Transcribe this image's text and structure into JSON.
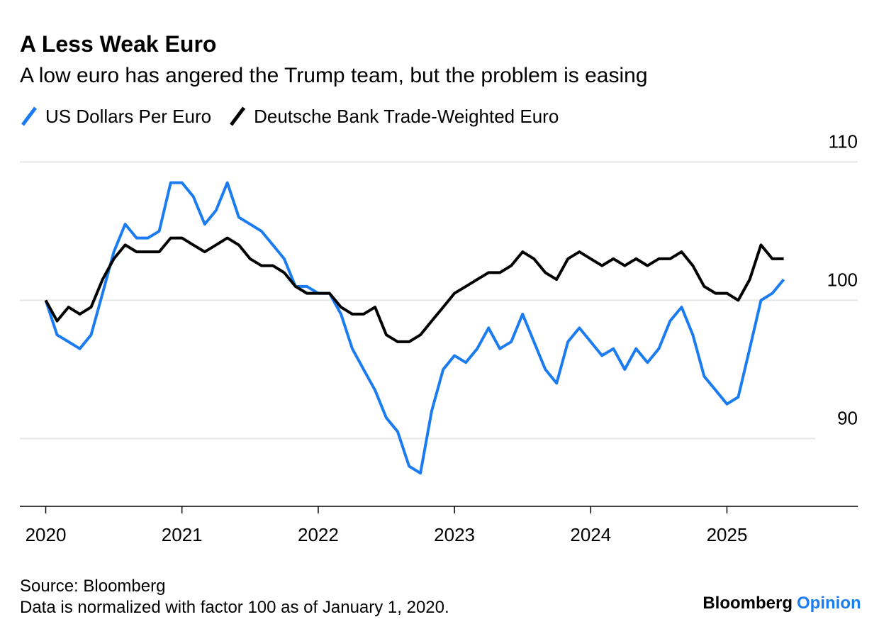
{
  "chart_data": {
    "type": "line",
    "title": "A Less Weak Euro",
    "subtitle": "A low euro has angered the Trump team, but the problem is easing",
    "source": "Source: Bloomberg",
    "note": "Data is normalized with factor 100 as of January 1, 2020.",
    "brand": "Bloomberg",
    "brand_suffix": "Opinion",
    "x": [
      2020,
      2020.083,
      2020.167,
      2020.25,
      2020.333,
      2020.417,
      2020.5,
      2020.583,
      2020.667,
      2020.75,
      2020.833,
      2020.917,
      2021,
      2021.083,
      2021.167,
      2021.25,
      2021.333,
      2021.417,
      2021.5,
      2021.583,
      2021.667,
      2021.75,
      2021.833,
      2021.917,
      2022,
      2022.083,
      2022.167,
      2022.25,
      2022.333,
      2022.417,
      2022.5,
      2022.583,
      2022.667,
      2022.75,
      2022.833,
      2022.917,
      2023,
      2023.083,
      2023.167,
      2023.25,
      2023.333,
      2023.417,
      2023.5,
      2023.583,
      2023.667,
      2023.75,
      2023.833,
      2023.917,
      2024,
      2024.083,
      2024.167,
      2024.25,
      2024.333,
      2024.417,
      2024.5,
      2024.583,
      2024.667,
      2024.75,
      2024.833,
      2024.917,
      2025,
      2025.083,
      2025.167,
      2025.25,
      2025.333,
      2025.417
    ],
    "series": [
      {
        "name": "US Dollars Per Euro",
        "color": "#1a7cf0",
        "values": [
          100,
          97.5,
          97,
          96.5,
          97.5,
          100.5,
          103.5,
          105.5,
          104.5,
          104.5,
          105,
          108.5,
          108.5,
          107.5,
          105.5,
          106.5,
          108.5,
          106,
          105.5,
          105,
          104,
          103,
          101,
          101,
          100.5,
          100.5,
          99,
          96.5,
          95,
          93.5,
          91.5,
          90.5,
          88,
          87.5,
          92,
          95,
          96,
          95.5,
          96.5,
          98,
          96.5,
          97,
          99,
          97,
          95,
          94,
          97,
          98,
          97,
          96,
          96.5,
          95,
          96.5,
          95.5,
          96.5,
          98.5,
          99.5,
          97.5,
          94.5,
          93.5,
          92.5,
          93,
          96.5,
          100,
          100.5,
          101.5
        ]
      },
      {
        "name": "Deutsche Bank Trade-Weighted Euro",
        "color": "#000000",
        "values": [
          100,
          98.5,
          99.5,
          99,
          99.5,
          101.5,
          103,
          104,
          103.5,
          103.5,
          103.5,
          104.5,
          104.5,
          104,
          103.5,
          104,
          104.5,
          104,
          103,
          102.5,
          102.5,
          102,
          101,
          100.5,
          100.5,
          100.5,
          99.5,
          99,
          99,
          99.5,
          97.5,
          97,
          97,
          97.5,
          98.5,
          99.5,
          100.5,
          101,
          101.5,
          102,
          102,
          102.5,
          103.5,
          103,
          102,
          101.5,
          103,
          103.5,
          103,
          102.5,
          103,
          102.5,
          103,
          102.5,
          103,
          103,
          103.5,
          102.5,
          101,
          100.5,
          100.5,
          100,
          101.5,
          104,
          103,
          103
        ]
      }
    ],
    "xlim": [
      2019.81,
      2025.96
    ],
    "xticks": [
      2020,
      2021,
      2022,
      2023,
      2024,
      2025
    ],
    "ylim": [
      85.1,
      111.3
    ],
    "yticks": [
      90,
      100,
      110
    ],
    "grid": true
  }
}
